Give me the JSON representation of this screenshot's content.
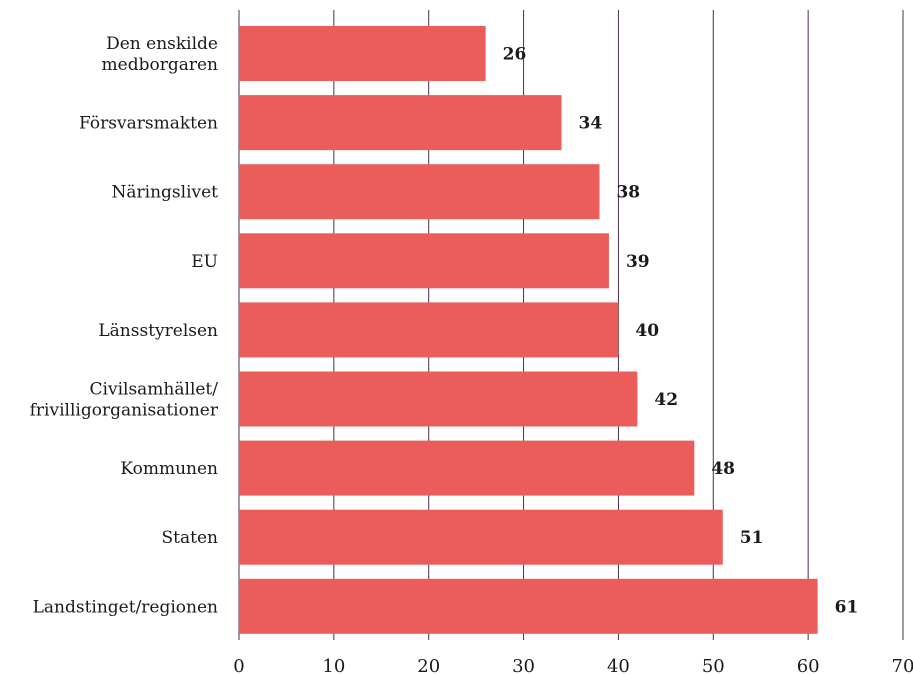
{
  "chart_data": {
    "type": "bar",
    "orientation": "horizontal",
    "title": "",
    "xlabel": "",
    "ylabel": "",
    "categories": [
      [
        "Den enskilde",
        "medborgaren"
      ],
      [
        "Försvarsmakten"
      ],
      [
        "Näringslivet"
      ],
      [
        "EU"
      ],
      [
        "Länsstyrelsen"
      ],
      [
        "Civilsamhället/",
        "frivilligorganisationer"
      ],
      [
        "Kommunen"
      ],
      [
        "Staten"
      ],
      [
        "Landstinget/regionen"
      ]
    ],
    "values": [
      26,
      34,
      38,
      39,
      40,
      42,
      48,
      51,
      61
    ],
    "value_labels": [
      "26",
      "34",
      "38",
      "39",
      "40",
      "42",
      "48",
      "51",
      "61"
    ],
    "xlim": [
      0,
      70
    ],
    "xticks": [
      0,
      10,
      20,
      30,
      40,
      50,
      60,
      70
    ],
    "xtick_labels": [
      "0",
      "10",
      "20",
      "30",
      "40",
      "50",
      "60",
      "70"
    ],
    "grid": true,
    "bar_color": "#ea5d5b",
    "grid_color": "#4d2a4f"
  }
}
